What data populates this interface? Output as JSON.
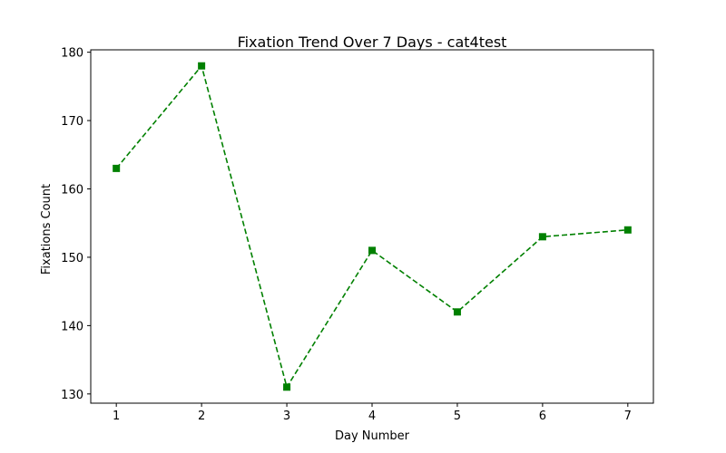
{
  "chart_data": {
    "type": "line",
    "title": "Fixation Trend Over 7 Days - cat4test",
    "xlabel": "Day Number",
    "ylabel": "Fixations Count",
    "x": [
      1,
      2,
      3,
      4,
      5,
      6,
      7
    ],
    "series": [
      {
        "values": [
          163,
          178,
          131,
          151,
          142,
          153,
          154
        ],
        "color": "#008000",
        "line_style": "dashed",
        "marker": "square"
      }
    ],
    "xlim": [
      0.7,
      7.3
    ],
    "ylim": [
      128.65,
      180.35
    ],
    "x_ticks": [
      1,
      2,
      3,
      4,
      5,
      6,
      7
    ],
    "y_ticks": [
      130,
      140,
      150,
      160,
      170,
      180
    ],
    "grid": false,
    "legend": "none"
  }
}
